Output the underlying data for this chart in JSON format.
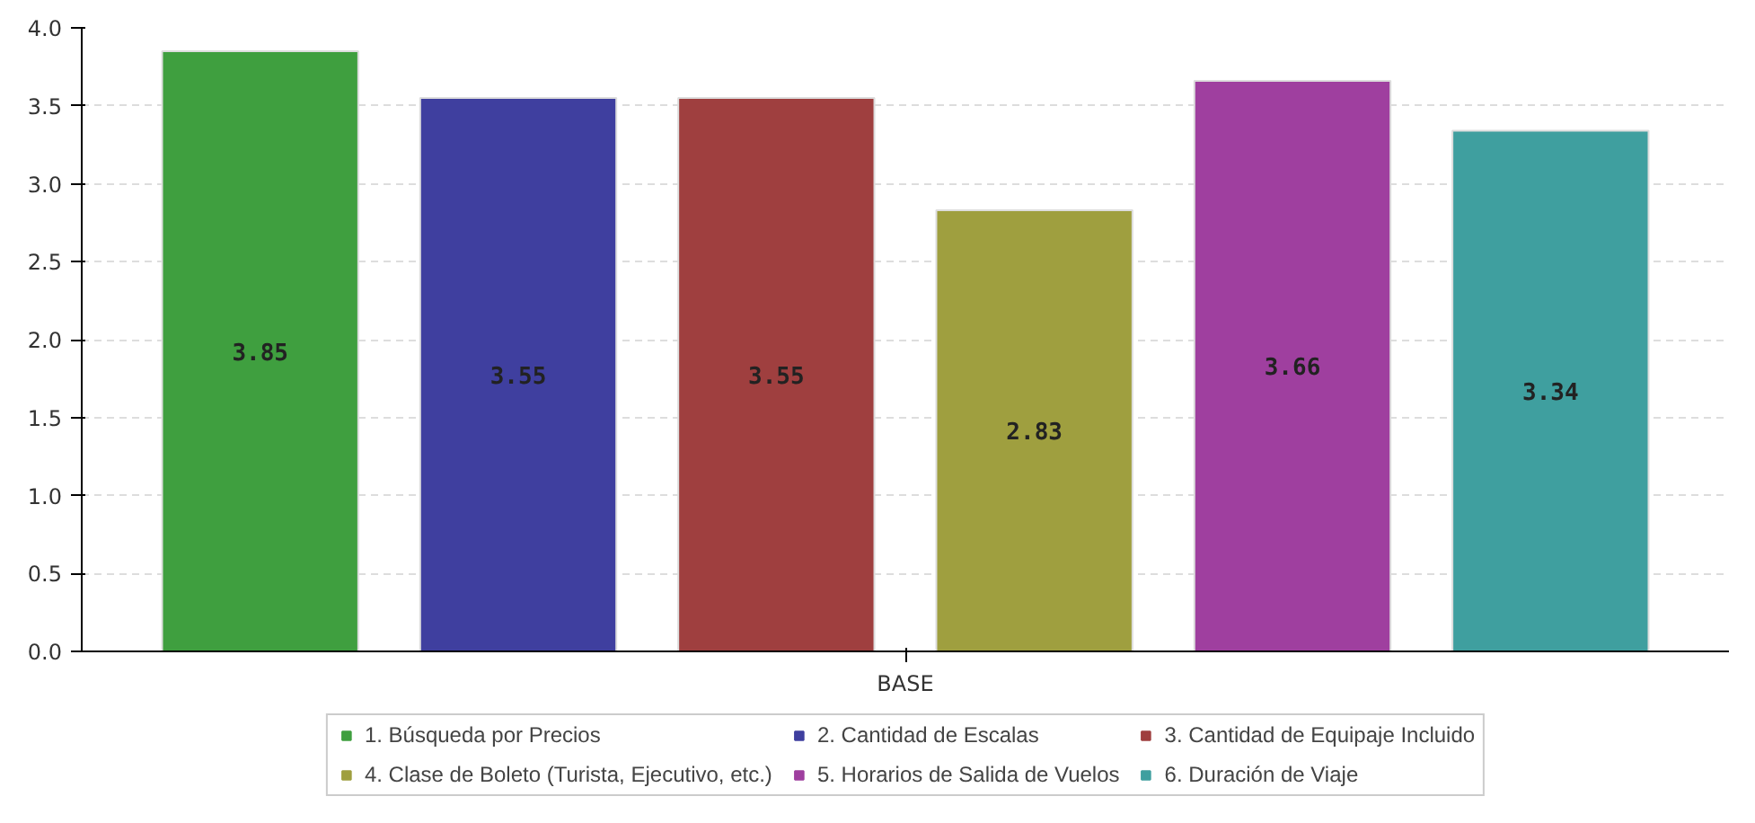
{
  "chart_data": {
    "type": "bar",
    "categories": [
      "BASE"
    ],
    "series": [
      {
        "name": "1. Búsqueda por Precios",
        "color": "#3f9f3f",
        "values": [
          3.85
        ]
      },
      {
        "name": "2. Cantidad de Escalas",
        "color": "#3f3f9f",
        "values": [
          3.55
        ]
      },
      {
        "name": "3. Cantidad de Equipaje Incluido",
        "color": "#9f3f3f",
        "values": [
          3.55
        ]
      },
      {
        "name": "4. Clase de Boleto (Turista, Ejecutivo, etc.)",
        "color": "#9f9f3f",
        "values": [
          2.83
        ]
      },
      {
        "name": "5. Horarios de Salida de Vuelos",
        "color": "#9f3f9f",
        "values": [
          3.66
        ]
      },
      {
        "name": "6. Duración de Viaje",
        "color": "#3f9f9f",
        "values": [
          3.34
        ]
      }
    ],
    "ylim": [
      0,
      4
    ],
    "yticks": [
      {
        "value": 0,
        "label": "0.0"
      },
      {
        "value": 0.5,
        "label": "0.5"
      },
      {
        "value": 1,
        "label": "1.0"
      },
      {
        "value": 1.5,
        "label": "1.5"
      },
      {
        "value": 2,
        "label": "2.0"
      },
      {
        "value": 2.5,
        "label": "2.5"
      },
      {
        "value": 3,
        "label": "3.0"
      },
      {
        "value": 3.5,
        "label": "3.5"
      },
      {
        "value": 4,
        "label": "4.0"
      }
    ],
    "grid": "y",
    "legend": "bottom",
    "data_labels": true
  }
}
